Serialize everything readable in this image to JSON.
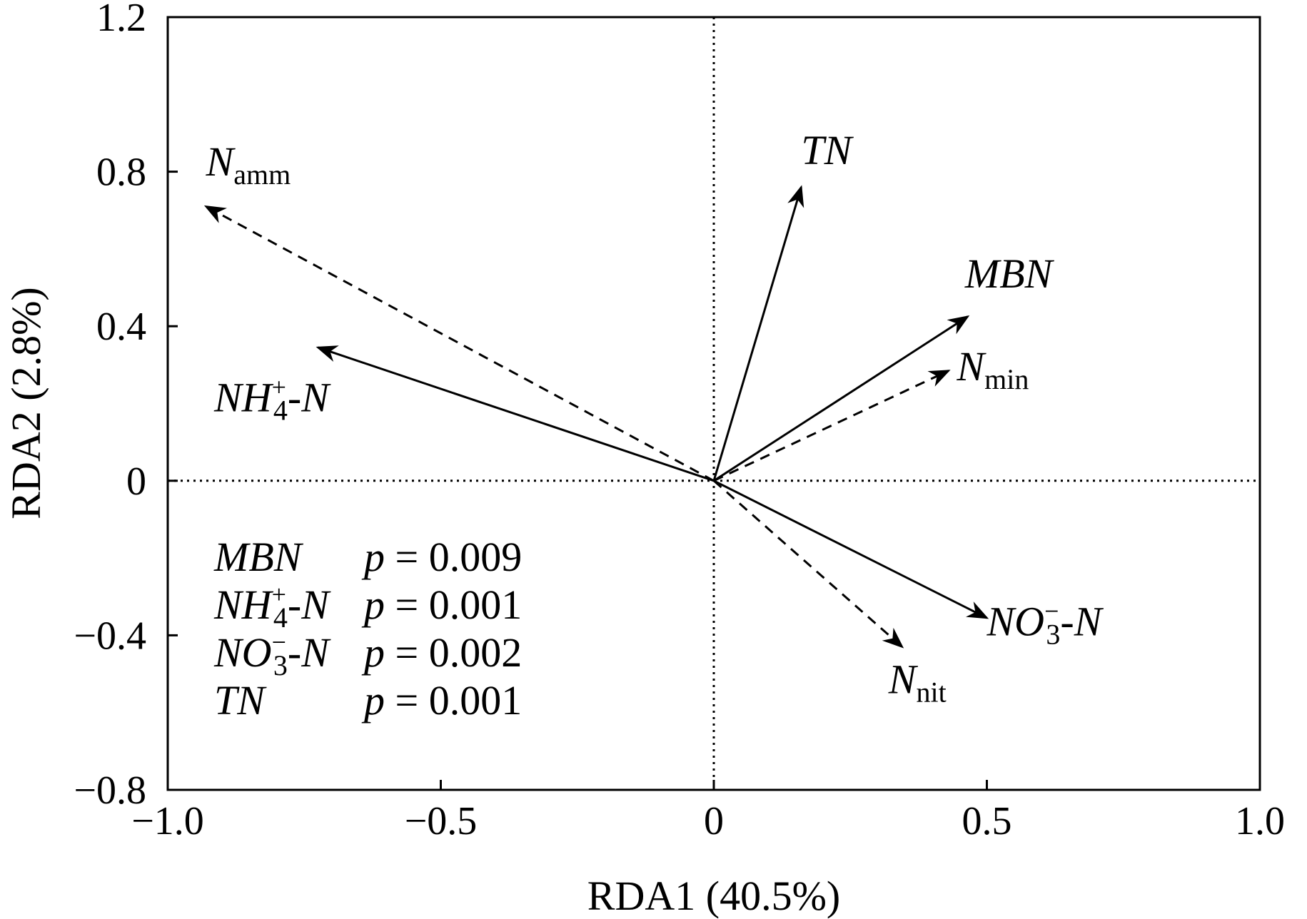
{
  "chart_data": {
    "type": "biplot",
    "xlabel": "RDA1 (40.5%)",
    "ylabel": "RDA2 (2.8%)",
    "xlim": [
      -1.0,
      1.0
    ],
    "ylim": [
      -0.8,
      1.2
    ],
    "xticks": [
      {
        "value": -1.0,
        "label": "−1.0"
      },
      {
        "value": -0.5,
        "label": "−0.5"
      },
      {
        "value": 0,
        "label": "0"
      },
      {
        "value": 0.5,
        "label": "0.5"
      },
      {
        "value": 1.0,
        "label": "1.0"
      }
    ],
    "yticks": [
      {
        "value": -0.8,
        "label": "−0.8"
      },
      {
        "value": -0.4,
        "label": "−0.4"
      },
      {
        "value": 0,
        "label": "0"
      },
      {
        "value": 0.4,
        "label": "0.4"
      },
      {
        "value": 0.8,
        "label": "0.8"
      },
      {
        "value": 1.2,
        "label": "1.2"
      }
    ],
    "grid": false,
    "zero_lines": true,
    "vectors": [
      {
        "name": "TN",
        "base": "TN",
        "sub": "",
        "sup": "",
        "tail": "",
        "x": 0.16,
        "y": 0.76,
        "style": "solid",
        "label_x": 0.16,
        "label_y": 0.82,
        "anchor": "start"
      },
      {
        "name": "MBN",
        "base": "MBN",
        "sub": "",
        "sup": "",
        "tail": "",
        "x": 0.465,
        "y": 0.425,
        "style": "solid",
        "label_x": 0.46,
        "label_y": 0.5,
        "anchor": "start"
      },
      {
        "name": "NH4+-N",
        "base": "NH",
        "sub": "4",
        "sup": "+",
        "tail": "-N",
        "x": -0.725,
        "y": 0.345,
        "style": "solid",
        "label_x": -0.915,
        "label_y": 0.18,
        "anchor": "start"
      },
      {
        "name": "NO3--N",
        "base": "NO",
        "sub": "3",
        "sup": "−",
        "tail": "-N",
        "x": 0.5,
        "y": -0.355,
        "style": "solid",
        "label_x": 0.5,
        "label_y": -0.4,
        "anchor": "start"
      },
      {
        "name": "Namm",
        "base": "N",
        "sub": "amm",
        "sup": "",
        "tail": "",
        "x": -0.93,
        "y": 0.71,
        "style": "dashed",
        "label_x": -0.93,
        "label_y": 0.79,
        "anchor": "start"
      },
      {
        "name": "Nmin",
        "base": "N",
        "sub": "min",
        "sup": "",
        "tail": "",
        "x": 0.43,
        "y": 0.285,
        "style": "dashed",
        "label_x": 0.445,
        "label_y": 0.26,
        "anchor": "start"
      },
      {
        "name": "Nnit",
        "base": "N",
        "sub": "nit",
        "sup": "",
        "tail": "",
        "x": 0.345,
        "y": -0.43,
        "style": "dashed",
        "label_x": 0.32,
        "label_y": -0.55,
        "anchor": "start"
      }
    ],
    "annotations": [
      {
        "base": "MBN",
        "sub": "",
        "sup": "",
        "tail": "",
        "p_label": "p",
        "p_value": "= 0.009"
      },
      {
        "base": "NH",
        "sub": "4",
        "sup": "+",
        "tail": "-N",
        "p_label": "p",
        "p_value": "= 0.001"
      },
      {
        "base": "NO",
        "sub": "3",
        "sup": "−",
        "tail": "-N",
        "p_label": "p",
        "p_value": "= 0.002"
      },
      {
        "base": "TN",
        "sub": "",
        "sup": "",
        "tail": "",
        "p_label": "p",
        "p_value": "= 0.001"
      }
    ]
  }
}
